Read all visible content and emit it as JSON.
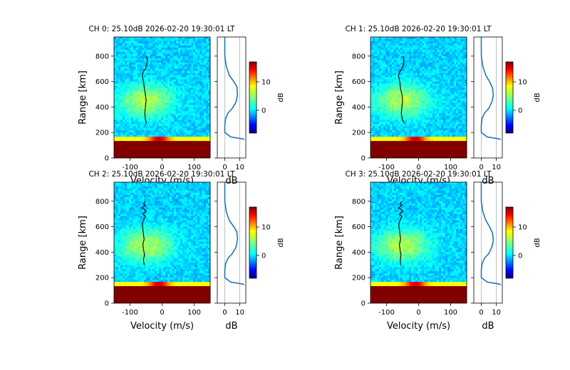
{
  "chart_data": [
    {
      "type": "heatmap",
      "title": "CH 0: 25.10dB 2026-02-20 19:30:01 LT",
      "xlabel": "Velocity (m/s)",
      "ylabel": "Range [km]",
      "xlim": [
        -150,
        150
      ],
      "ylim": [
        0,
        950
      ],
      "xticks": [
        "-100",
        "0",
        "100"
      ],
      "yticks": [
        "0",
        "200",
        "400",
        "600",
        "800"
      ],
      "doppler_line": {
        "x": [
          -48,
          -52,
          -54,
          -52,
          -50,
          -52,
          -55,
          -57,
          -60,
          -62,
          -58,
          -52,
          -48,
          -46,
          -46,
          -50
        ],
        "y": [
          270,
          300,
          350,
          400,
          450,
          500,
          540,
          580,
          620,
          650,
          680,
          700,
          730,
          760,
          780,
          800
        ]
      },
      "profile": {
        "xlabel": "dB",
        "xticks": [
          "0",
          "10"
        ],
        "xlim": [
          -5,
          14
        ],
        "gridlines": [
          0,
          10
        ],
        "x": [
          13,
          12,
          4,
          0,
          0,
          0.5,
          2,
          5,
          7.5,
          8.5,
          8,
          6,
          3,
          1,
          0,
          0
        ],
        "y": [
          145,
          150,
          165,
          200,
          260,
          310,
          350,
          390,
          440,
          500,
          560,
          600,
          650,
          720,
          800,
          950
        ]
      },
      "colorbar": {
        "label": "dB",
        "ticks": [
          "0",
          "10"
        ],
        "range": [
          -8,
          17
        ]
      }
    },
    {
      "type": "heatmap",
      "title": "CH 1: 25.10dB 2026-02-20 19:30:01 LT",
      "xlabel": "Velocity (m/s)",
      "ylabel": "Range [km]",
      "xlim": [
        -150,
        150
      ],
      "ylim": [
        0,
        950
      ],
      "xticks": [
        "-100",
        "0",
        "100"
      ],
      "yticks": [
        "0",
        "200",
        "400",
        "600",
        "800"
      ],
      "doppler_line": {
        "x": [
          -44,
          -50,
          -54,
          -52,
          -50,
          -52,
          -56,
          -58,
          -60,
          -63,
          -58,
          -52,
          -48,
          -46,
          -46,
          -50
        ],
        "y": [
          270,
          300,
          350,
          400,
          450,
          500,
          540,
          580,
          620,
          650,
          680,
          700,
          730,
          760,
          780,
          800
        ]
      },
      "profile": {
        "xlabel": "dB",
        "xticks": [
          "0",
          "10"
        ],
        "xlim": [
          -5,
          14
        ],
        "gridlines": [
          0,
          10
        ],
        "x": [
          13,
          12,
          4,
          0,
          0,
          0.5,
          2,
          5,
          7,
          8,
          7.5,
          5.5,
          3,
          1,
          0,
          0
        ],
        "y": [
          145,
          150,
          165,
          200,
          260,
          310,
          350,
          390,
          440,
          490,
          550,
          600,
          650,
          720,
          800,
          950
        ]
      },
      "colorbar": {
        "label": "dB",
        "ticks": [
          "0",
          "10"
        ],
        "range": [
          -8,
          17
        ]
      }
    },
    {
      "type": "heatmap",
      "title": "CH 2: 25.10dB 2026-02-20 19:30:01 LT",
      "xlabel": "Velocity (m/s)",
      "ylabel": "Range [km]",
      "xlim": [
        -150,
        150
      ],
      "ylim": [
        0,
        950
      ],
      "xticks": [
        "-100",
        "0",
        "100"
      ],
      "yticks": [
        "0",
        "200",
        "400",
        "600",
        "800"
      ],
      "doppler_line": {
        "x": [
          -56,
          -58,
          -55,
          -58,
          -60,
          -56,
          -58,
          -60,
          -62,
          -58,
          -52,
          -60,
          -50,
          -56,
          -64,
          -52,
          -58,
          -52
        ],
        "y": [
          300,
          340,
          380,
          420,
          460,
          500,
          540,
          580,
          620,
          650,
          680,
          700,
          720,
          740,
          745,
          770,
          780,
          800
        ]
      },
      "profile": {
        "xlabel": "dB",
        "xticks": [
          "0",
          "10"
        ],
        "xlim": [
          -5,
          14
        ],
        "gridlines": [
          0,
          10
        ],
        "x": [
          13,
          12,
          4,
          0,
          0,
          0.5,
          2,
          5,
          7.5,
          8.5,
          8,
          6,
          3,
          1,
          0,
          0
        ],
        "y": [
          145,
          150,
          165,
          200,
          260,
          310,
          350,
          390,
          440,
          500,
          560,
          600,
          650,
          720,
          800,
          950
        ]
      },
      "colorbar": {
        "label": "dB",
        "ticks": [
          "0",
          "10"
        ],
        "range": [
          -8,
          17
        ]
      }
    },
    {
      "type": "heatmap",
      "title": "CH 3: 25.10dB 2026-02-20 19:30:01 LT",
      "xlabel": "Velocity (m/s)",
      "ylabel": "Range [km]",
      "xlim": [
        -150,
        150
      ],
      "ylim": [
        0,
        950
      ],
      "xticks": [
        "-100",
        "0",
        "100"
      ],
      "yticks": [
        "0",
        "200",
        "400",
        "600",
        "800"
      ],
      "doppler_line": {
        "x": [
          -56,
          -57,
          -55,
          -58,
          -60,
          -56,
          -58,
          -60,
          -62,
          -58,
          -52,
          -60,
          -50,
          -56,
          -64,
          -52,
          -58,
          -52
        ],
        "y": [
          300,
          340,
          380,
          420,
          460,
          500,
          540,
          580,
          620,
          650,
          680,
          700,
          720,
          740,
          745,
          770,
          780,
          800
        ]
      },
      "profile": {
        "xlabel": "dB",
        "xticks": [
          "0",
          "10"
        ],
        "xlim": [
          -5,
          14
        ],
        "gridlines": [
          0,
          10
        ],
        "x": [
          13,
          12,
          4,
          0,
          0,
          0.5,
          2,
          5,
          7,
          8,
          7.5,
          5.5,
          3,
          1,
          0,
          0
        ],
        "y": [
          145,
          150,
          165,
          200,
          260,
          310,
          350,
          390,
          440,
          490,
          550,
          600,
          650,
          720,
          800,
          950
        ]
      },
      "colorbar": {
        "label": "dB",
        "ticks": [
          "0",
          "10"
        ],
        "range": [
          -8,
          17
        ]
      }
    }
  ],
  "colors": {
    "background": "#ffffff",
    "profile_line": "#1f77b4",
    "doppler_line": "#000000",
    "ground_band": "#800000",
    "gridline": "#b0b0b0"
  }
}
